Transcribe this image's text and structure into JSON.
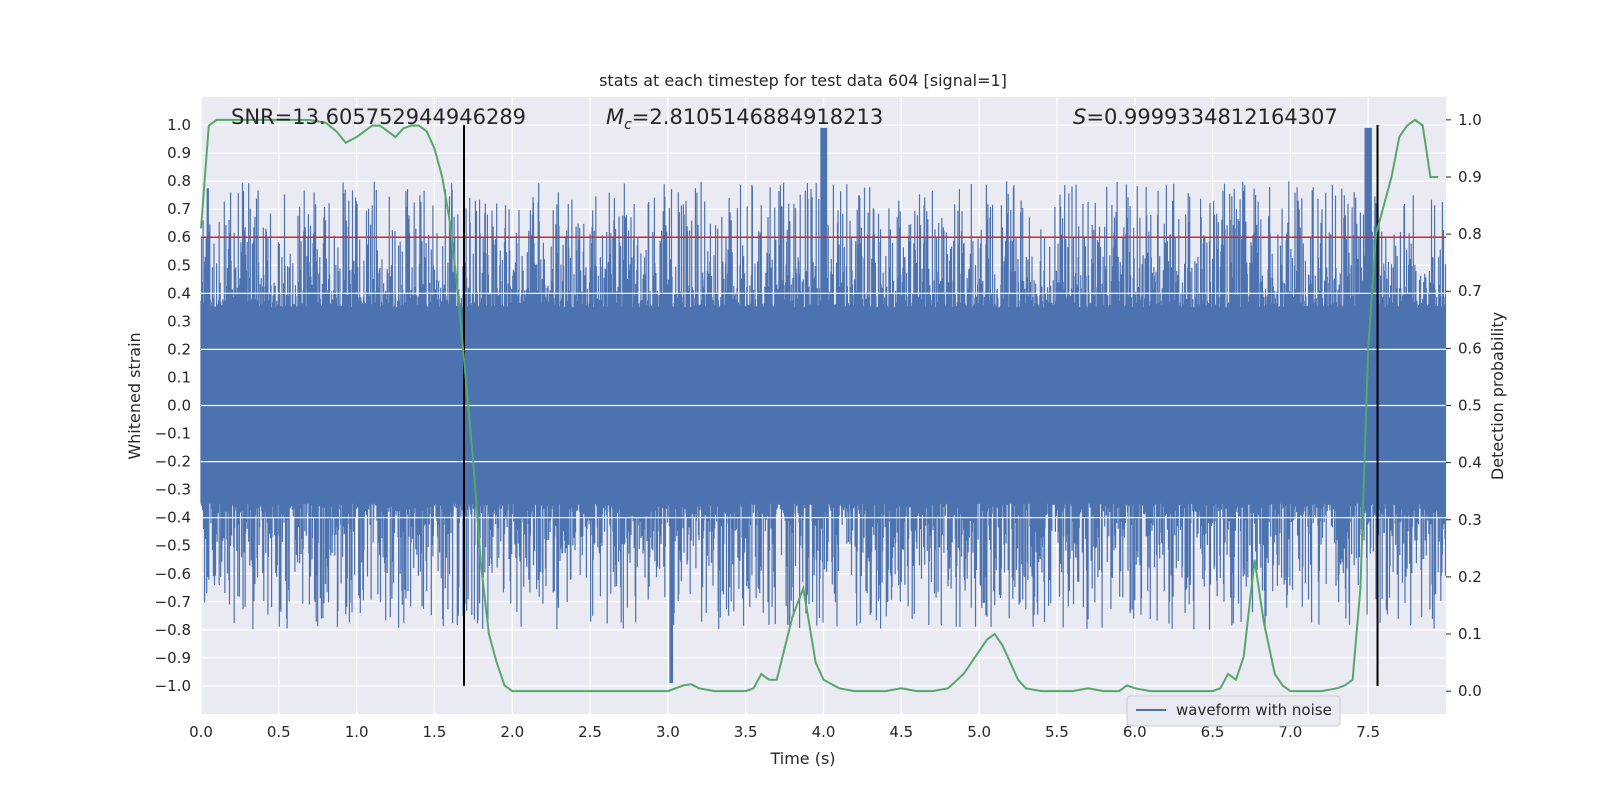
{
  "chart_data": {
    "type": "line",
    "title": "stats at each timestep for test data 604 [signal=1]",
    "xlabel": "Time (s)",
    "ylabel": "Whitened strain",
    "y2label": "Detection probability",
    "xlim": [
      0.0,
      8.0
    ],
    "ylim": [
      -1.1,
      1.1
    ],
    "y2lim": [
      -0.04,
      1.04
    ],
    "xticks": [
      "0.0",
      "0.5",
      "1.0",
      "1.5",
      "2.0",
      "2.5",
      "3.0",
      "3.5",
      "4.0",
      "4.5",
      "5.0",
      "5.5",
      "6.0",
      "6.5",
      "7.0",
      "7.5"
    ],
    "yticks": [
      "1.0",
      "0.9",
      "0.8",
      "0.7",
      "0.6",
      "0.5",
      "0.4",
      "0.3",
      "0.2",
      "0.1",
      "0.0",
      "−0.1",
      "−0.2",
      "−0.3",
      "−0.4",
      "−0.5",
      "−0.6",
      "−0.7",
      "−0.8",
      "−0.9",
      "−1.0"
    ],
    "y2ticks": [
      "1.0",
      "0.9",
      "0.8",
      "0.7",
      "0.6",
      "0.5",
      "0.4",
      "0.3",
      "0.2",
      "0.1",
      "0.0"
    ],
    "annotations": {
      "snr": "SNR=13.605752944946289",
      "mc_symbol": "M",
      "mc_sub": "c",
      "mc_value": "=2.8105146884918213",
      "s_symbol": "S",
      "s_value": "=0.9999334812164307"
    },
    "threshold": {
      "y": 0.6,
      "color": "#d62728"
    },
    "vertical_markers": [
      1.69,
      7.56
    ],
    "legend": {
      "label": "waveform with noise",
      "position": "lower-right"
    },
    "series": [
      {
        "name": "waveform with noise",
        "color": "#4c72b0",
        "axis": "left",
        "description_values": "dense noise, envelope approx ±0.4 to ±0.8 with peaks near 1.0 at t≈4.0 and t≈7.5"
      },
      {
        "color": "#55a868",
        "axis": "right",
        "x": [
          0.0,
          0.05,
          0.1,
          0.2,
          0.3,
          0.4,
          0.5,
          0.6,
          0.7,
          0.8,
          0.87,
          0.93,
          1.0,
          1.05,
          1.1,
          1.15,
          1.2,
          1.25,
          1.3,
          1.35,
          1.4,
          1.45,
          1.5,
          1.55,
          1.6,
          1.65,
          1.7,
          1.75,
          1.8,
          1.85,
          1.9,
          1.95,
          2.0,
          2.1,
          2.3,
          2.5,
          2.7,
          2.9,
          3.0,
          3.1,
          3.15,
          3.2,
          3.3,
          3.4,
          3.5,
          3.55,
          3.6,
          3.65,
          3.7,
          3.8,
          3.87,
          3.95,
          4.0,
          4.1,
          4.2,
          4.4,
          4.5,
          4.6,
          4.7,
          4.8,
          4.9,
          5.0,
          5.05,
          5.1,
          5.15,
          5.2,
          5.25,
          5.3,
          5.4,
          5.5,
          5.6,
          5.7,
          5.8,
          5.9,
          5.95,
          6.0,
          6.1,
          6.2,
          6.3,
          6.4,
          6.5,
          6.55,
          6.6,
          6.65,
          6.7,
          6.77,
          6.83,
          6.9,
          6.95,
          7.0,
          7.1,
          7.2,
          7.3,
          7.35,
          7.4,
          7.45,
          7.5,
          7.55,
          7.6,
          7.65,
          7.7,
          7.75,
          7.8,
          7.85,
          7.9,
          7.95
        ],
        "y": [
          0.81,
          0.99,
          1.0,
          1.0,
          1.0,
          1.0,
          1.0,
          1.0,
          1.0,
          0.995,
          0.98,
          0.96,
          0.97,
          0.98,
          0.99,
          0.99,
          0.98,
          0.97,
          0.985,
          0.99,
          0.99,
          0.98,
          0.95,
          0.9,
          0.82,
          0.7,
          0.55,
          0.4,
          0.22,
          0.1,
          0.05,
          0.01,
          0.0,
          0.0,
          0.0,
          0.0,
          0.0,
          0.0,
          0.0,
          0.01,
          0.012,
          0.005,
          0.0,
          0.0,
          0.0,
          0.005,
          0.03,
          0.02,
          0.02,
          0.13,
          0.18,
          0.05,
          0.02,
          0.005,
          0.0,
          0.0,
          0.005,
          0.0,
          0.0,
          0.005,
          0.03,
          0.07,
          0.09,
          0.1,
          0.08,
          0.05,
          0.02,
          0.005,
          0.0,
          0.0,
          0.0,
          0.005,
          0.0,
          0.0,
          0.01,
          0.005,
          0.0,
          0.0,
          0.0,
          0.0,
          0.0,
          0.005,
          0.03,
          0.02,
          0.06,
          0.23,
          0.12,
          0.03,
          0.01,
          0.0,
          0.0,
          0.0,
          0.005,
          0.01,
          0.02,
          0.18,
          0.6,
          0.8,
          0.85,
          0.9,
          0.97,
          0.99,
          1.0,
          0.99,
          0.9,
          0.9
        ]
      }
    ]
  }
}
